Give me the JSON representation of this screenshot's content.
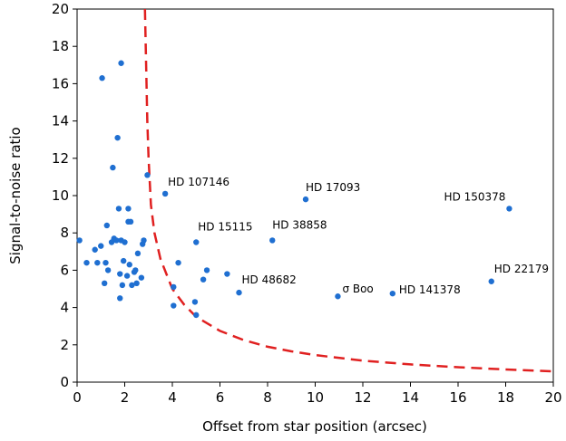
{
  "chart_data": {
    "type": "scatter",
    "xlabel": "Offset from star position (arcsec)",
    "ylabel": "Signal-to-noise ratio",
    "xlim": [
      0,
      20
    ],
    "ylim": [
      0,
      20
    ],
    "x_ticks": [
      "0",
      "2",
      "4",
      "6",
      "8",
      "10",
      "12",
      "14",
      "16",
      "18",
      "20"
    ],
    "y_ticks": [
      "0",
      "2",
      "4",
      "6",
      "8",
      "10",
      "12",
      "14",
      "16",
      "18",
      "20"
    ],
    "grid": false,
    "colors": {
      "points": "#1f6fd1",
      "curve": "#e02020"
    },
    "series": [
      {
        "points": [
          {
            "x": 0.1,
            "y": 7.6
          },
          {
            "x": 0.4,
            "y": 6.4
          },
          {
            "x": 0.75,
            "y": 7.1
          },
          {
            "x": 0.85,
            "y": 6.4
          },
          {
            "x": 1.0,
            "y": 7.3
          },
          {
            "x": 1.05,
            "y": 16.3
          },
          {
            "x": 1.15,
            "y": 5.3
          },
          {
            "x": 1.2,
            "y": 6.4
          },
          {
            "x": 1.25,
            "y": 8.4
          },
          {
            "x": 1.3,
            "y": 6.0
          },
          {
            "x": 1.45,
            "y": 7.5
          },
          {
            "x": 1.5,
            "y": 11.5
          },
          {
            "x": 1.55,
            "y": 7.7
          },
          {
            "x": 1.65,
            "y": 7.6
          },
          {
            "x": 1.7,
            "y": 13.1
          },
          {
            "x": 1.75,
            "y": 9.3
          },
          {
            "x": 1.8,
            "y": 5.8
          },
          {
            "x": 1.85,
            "y": 17.1
          },
          {
            "x": 1.85,
            "y": 7.6
          },
          {
            "x": 1.8,
            "y": 4.5
          },
          {
            "x": 1.9,
            "y": 5.2
          },
          {
            "x": 1.95,
            "y": 6.5
          },
          {
            "x": 2.0,
            "y": 7.5
          },
          {
            "x": 2.1,
            "y": 5.7
          },
          {
            "x": 2.15,
            "y": 8.6
          },
          {
            "x": 2.15,
            "y": 9.3
          },
          {
            "x": 2.2,
            "y": 6.3
          },
          {
            "x": 2.25,
            "y": 8.6
          },
          {
            "x": 2.3,
            "y": 5.2
          },
          {
            "x": 2.4,
            "y": 5.9
          },
          {
            "x": 2.45,
            "y": 6.0
          },
          {
            "x": 2.5,
            "y": 5.3
          },
          {
            "x": 2.55,
            "y": 6.9
          },
          {
            "x": 2.7,
            "y": 5.6
          },
          {
            "x": 2.75,
            "y": 7.4
          },
          {
            "x": 2.8,
            "y": 7.6
          },
          {
            "x": 2.95,
            "y": 11.1
          },
          {
            "x": 3.7,
            "y": 10.1
          },
          {
            "x": 4.05,
            "y": 4.1
          },
          {
            "x": 4.05,
            "y": 5.1
          },
          {
            "x": 4.25,
            "y": 6.4
          },
          {
            "x": 4.95,
            "y": 4.3
          },
          {
            "x": 5.0,
            "y": 7.5
          },
          {
            "x": 5.0,
            "y": 3.6
          },
          {
            "x": 5.3,
            "y": 5.5
          },
          {
            "x": 5.45,
            "y": 6.0
          },
          {
            "x": 6.3,
            "y": 5.8
          },
          {
            "x": 6.8,
            "y": 4.8
          },
          {
            "x": 8.2,
            "y": 7.6
          },
          {
            "x": 9.6,
            "y": 9.8
          },
          {
            "x": 10.95,
            "y": 4.6
          },
          {
            "x": 13.25,
            "y": 4.75
          },
          {
            "x": 17.4,
            "y": 5.4
          },
          {
            "x": 18.15,
            "y": 9.3
          }
        ]
      }
    ],
    "annotations": [
      {
        "text": "HD 107146",
        "x": 3.7,
        "y": 10.1
      },
      {
        "text": "HD 17093",
        "x": 9.6,
        "y": 9.8
      },
      {
        "text": "HD 150378",
        "x": 18.15,
        "y": 9.3
      },
      {
        "text": "HD 15115",
        "x": 5.0,
        "y": 7.5
      },
      {
        "text": "HD 38858",
        "x": 8.2,
        "y": 7.6
      },
      {
        "text": "HD 48682",
        "x": 6.8,
        "y": 4.8
      },
      {
        "text": "σ Boo",
        "x": 10.95,
        "y": 4.6
      },
      {
        "text": "HD 141378",
        "x": 13.25,
        "y": 4.75
      },
      {
        "text": "HD 22179",
        "x": 17.4,
        "y": 5.4
      }
    ],
    "curve": {
      "style": "dashed",
      "points": [
        {
          "x": 2.85,
          "y": 20
        },
        {
          "x": 2.9,
          "y": 17
        },
        {
          "x": 2.95,
          "y": 14
        },
        {
          "x": 3.0,
          "y": 12
        },
        {
          "x": 3.1,
          "y": 9.5
        },
        {
          "x": 3.25,
          "y": 8
        },
        {
          "x": 3.5,
          "y": 6.6
        },
        {
          "x": 4.0,
          "y": 5.0
        },
        {
          "x": 4.5,
          "y": 4.15
        },
        {
          "x": 5.0,
          "y": 3.5
        },
        {
          "x": 6.0,
          "y": 2.75
        },
        {
          "x": 7.0,
          "y": 2.25
        },
        {
          "x": 8.0,
          "y": 1.9
        },
        {
          "x": 9.0,
          "y": 1.65
        },
        {
          "x": 10.0,
          "y": 1.45
        },
        {
          "x": 12.0,
          "y": 1.15
        },
        {
          "x": 14.0,
          "y": 0.95
        },
        {
          "x": 16.0,
          "y": 0.8
        },
        {
          "x": 18.0,
          "y": 0.68
        },
        {
          "x": 20.0,
          "y": 0.58
        }
      ]
    }
  }
}
